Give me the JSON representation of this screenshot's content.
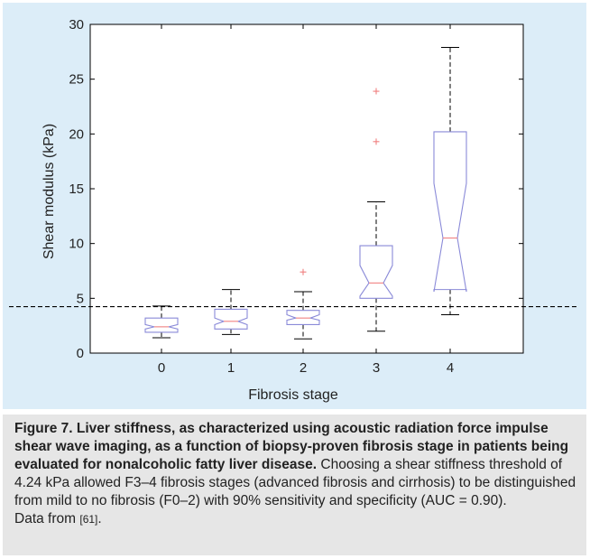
{
  "chart_data": {
    "type": "box",
    "title": "",
    "xlabel": "Fibrosis stage",
    "ylabel": "Shear modulus (kPa)",
    "categories": [
      "0",
      "1",
      "2",
      "3",
      "4"
    ],
    "ylim": [
      0,
      30
    ],
    "yticks": [
      0,
      5,
      10,
      15,
      20,
      25,
      30
    ],
    "grid": false,
    "notched": true,
    "threshold_line": 4.24,
    "boxes": [
      {
        "category": "0",
        "whisker_low": 1.4,
        "q1": 1.9,
        "median": 2.4,
        "q3": 3.2,
        "whisker_high": 4.3,
        "notch_low": 2.2,
        "notch_high": 2.6,
        "outliers": []
      },
      {
        "category": "1",
        "whisker_low": 1.7,
        "q1": 2.2,
        "median": 2.9,
        "q3": 4.0,
        "whisker_high": 5.8,
        "notch_low": 2.6,
        "notch_high": 3.2,
        "outliers": []
      },
      {
        "category": "2",
        "whisker_low": 1.3,
        "q1": 2.6,
        "median": 3.2,
        "q3": 3.9,
        "whisker_high": 5.6,
        "notch_low": 3.0,
        "notch_high": 3.5,
        "outliers": [
          7.4
        ]
      },
      {
        "category": "3",
        "whisker_low": 2.0,
        "q1": 5.0,
        "median": 6.4,
        "q3": 9.8,
        "whisker_high": 13.8,
        "notch_low": 5.2,
        "notch_high": 8.0,
        "outliers": [
          19.3,
          23.9
        ]
      },
      {
        "category": "4",
        "whisker_low": 3.5,
        "q1": 5.8,
        "median": 10.5,
        "q3": 20.2,
        "whisker_high": 27.9,
        "notch_low": 5.6,
        "notch_high": 15.5,
        "outliers": []
      }
    ],
    "colors": {
      "box": "#8a8ad8",
      "median": "#f08080",
      "whisker": "#000000",
      "outlier": "#f08080",
      "threshold": "#000000"
    }
  },
  "caption": {
    "bold": "Figure 7. Liver stiffness, as characterized using acoustic radiation force impulse shear wave imaging, as a function of biopsy-proven fibrosis stage in patients being evaluated for nonalcoholic fatty liver disease.",
    "body": " Choosing a shear stiffness threshold of 4.24 kPa allowed F3–4 fibrosis stages (advanced fibrosis and cirrhosis) to be distinguished from mild to no fibrosis (F0–2) with 90% sensitivity and specificity (AUC = 0.90).",
    "source_prefix": "Data from ",
    "source_ref": "[61]",
    "source_suffix": "."
  }
}
